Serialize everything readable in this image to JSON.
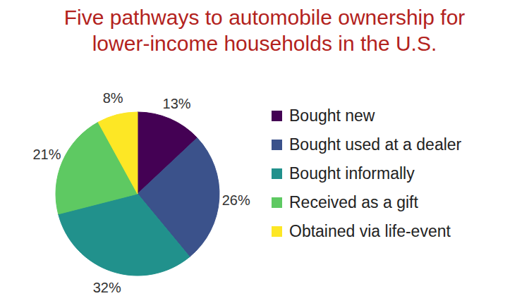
{
  "chart_data": {
    "type": "pie",
    "title": "Five pathways to automobile ownership for lower-income households in the U.S.",
    "categories": [
      "Bought new",
      "Bought used at a dealer",
      "Bought informally",
      "Received as a gift",
      "Obtained via life-event"
    ],
    "values": [
      13,
      26,
      32,
      21,
      8
    ],
    "value_labels": [
      "13%",
      "26%",
      "32%",
      "21%",
      "8%"
    ],
    "colors": [
      "#440154",
      "#3b528b",
      "#21918c",
      "#5ec962",
      "#fde725"
    ],
    "data_labels": true,
    "legend": "right"
  }
}
